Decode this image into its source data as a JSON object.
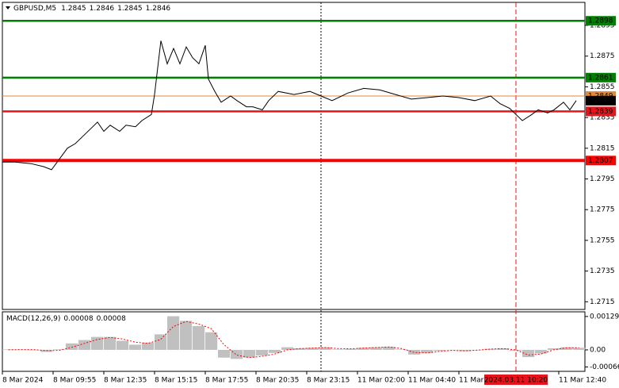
{
  "chart_data": [
    {
      "type": "line",
      "title": "GBPUSD,M5",
      "ohlc": [
        1.2845,
        1.2846,
        1.2845,
        1.2846
      ],
      "x": [
        0,
        8,
        18,
        26,
        31,
        36,
        41,
        46,
        51,
        56,
        60,
        64,
        68,
        74,
        78,
        84,
        88,
        94,
        96,
        100,
        104,
        108,
        112,
        116,
        120,
        124,
        128,
        130,
        134,
        138,
        144,
        148,
        154,
        158,
        164,
        168,
        174,
        184,
        194,
        201,
        208,
        218,
        228,
        238,
        248,
        258,
        268,
        278,
        288,
        298,
        308,
        314,
        320,
        328,
        334,
        338,
        344,
        348,
        354,
        358,
        362
      ],
      "values": [
        1.2806,
        1.2806,
        1.2805,
        1.2803,
        1.2801,
        1.2808,
        1.2815,
        1.2818,
        1.2823,
        1.2828,
        1.2832,
        1.2826,
        1.283,
        1.2826,
        1.283,
        1.2829,
        1.2833,
        1.2837,
        1.285,
        1.2885,
        1.287,
        1.288,
        1.287,
        1.2881,
        1.2874,
        1.287,
        1.2882,
        1.286,
        1.2852,
        1.2845,
        1.2849,
        1.2846,
        1.2842,
        1.2842,
        1.284,
        1.2846,
        1.2852,
        1.285,
        1.2852,
        1.2849,
        1.2846,
        1.2851,
        1.2854,
        1.2853,
        1.285,
        1.2847,
        1.2848,
        1.2849,
        1.2848,
        1.2846,
        1.2849,
        1.2844,
        1.2841,
        1.2833,
        1.2837,
        1.284,
        1.2838,
        1.284,
        1.2845,
        1.284,
        1.2846
      ],
      "color": "#000000",
      "xlim": [
        0,
        367
      ],
      "ylim": [
        1.271,
        1.291
      ],
      "yticks": [
        1.2895,
        1.2875,
        1.2855,
        1.2835,
        1.2815,
        1.2795,
        1.2775,
        1.2755,
        1.2735,
        1.2715
      ],
      "xticks": [
        {
          "value": 0,
          "label": "8 Mar 2024"
        },
        {
          "value": 32,
          "label": "8 Mar 09:55"
        },
        {
          "value": 64,
          "label": "8 Mar 12:35"
        },
        {
          "value": 96,
          "label": "8 Mar 15:15"
        },
        {
          "value": 128,
          "label": "8 Mar 17:55"
        },
        {
          "value": 160,
          "label": "8 Mar 20:35"
        },
        {
          "value": 192,
          "label": "8 Mar 23:15"
        },
        {
          "value": 224,
          "label": "11 Mar 02:00"
        },
        {
          "value": 256,
          "label": "11 Mar 04:40"
        },
        {
          "value": 288,
          "label": "11 Mar"
        },
        {
          "value": 351,
          "label": "11 Mar 12:40"
        }
      ],
      "levels": [
        {
          "value": 1.2898,
          "color": "#008000"
        },
        {
          "value": 1.2861,
          "color": "#008000"
        },
        {
          "value": 1.2849,
          "color": "#e08a3c"
        },
        {
          "value": 1.2839,
          "color": "#e8141c"
        },
        {
          "value": 1.2807,
          "color": "#ff0000"
        }
      ],
      "last_price": 1.2846,
      "vlines": [
        {
          "x": 201,
          "color": "#000000"
        },
        {
          "x": 324,
          "color": "#e8141c"
        }
      ],
      "cursor": {
        "x": 324,
        "label": "2024.03.11 10:20"
      }
    },
    {
      "type": "bar",
      "title": "MACD(12,26,9)",
      "readout": [
        8e-05,
        8e-05
      ],
      "x": [
        0,
        8,
        16,
        24,
        32,
        40,
        48,
        56,
        64,
        72,
        80,
        88,
        96,
        104,
        112,
        120,
        128,
        136,
        144,
        152,
        160,
        168,
        176,
        184,
        192,
        200,
        208,
        216,
        224,
        232,
        240,
        248,
        256,
        264,
        272,
        280,
        288,
        296,
        304,
        312,
        320,
        328,
        336,
        344,
        352,
        360
      ],
      "values": [
        2e-05,
        1e-05,
        0.0,
        -8e-05,
        2e-05,
        0.00025,
        0.00038,
        0.0005,
        0.0005,
        0.00035,
        0.0002,
        0.00028,
        0.0006,
        0.0013,
        0.00112,
        0.00092,
        0.00068,
        -0.0003,
        -0.00035,
        -0.0003,
        -0.00022,
        -0.00012,
        0.0001,
        6e-05,
        8e-05,
        0.0001,
        2e-05,
        4e-05,
        8e-05,
        0.0001,
        0.00012,
        2e-05,
        -0.00018,
        -0.00012,
        -4e-05,
        0.0,
        -5e-05,
        0.0,
        4e-05,
        6e-05,
        -4e-05,
        -0.00028,
        -0.00014,
        6e-05,
        0.0001,
        8e-05
      ],
      "signal": [
        0.0,
        1e-05,
        1e-05,
        -3e-05,
        -2e-05,
        0.0001,
        0.00025,
        0.0004,
        0.00048,
        0.00042,
        0.0003,
        0.00025,
        0.0004,
        0.0009,
        0.0011,
        0.001,
        0.00082,
        0.0002,
        -0.0002,
        -0.0003,
        -0.00025,
        -0.00016,
        0.0,
        5e-05,
        7e-05,
        9e-05,
        5e-05,
        4e-05,
        7e-05,
        9e-05,
        0.00011,
        5e-05,
        -0.0001,
        -0.00012,
        -6e-05,
        -2e-05,
        -4e-05,
        -1e-05,
        3e-05,
        5e-05,
        0.0,
        -0.0002,
        -0.00016,
        0.0,
        8e-05,
        8e-05
      ],
      "color": "#c0c0c0",
      "signal_color": "#ff0000",
      "xlim": [
        0,
        367
      ],
      "ylim": [
        -0.00083,
        0.00147
      ],
      "yticks": [
        0.00129,
        {
          "value": 0,
          "label": "0.00"
        },
        -0.00066
      ]
    }
  ]
}
